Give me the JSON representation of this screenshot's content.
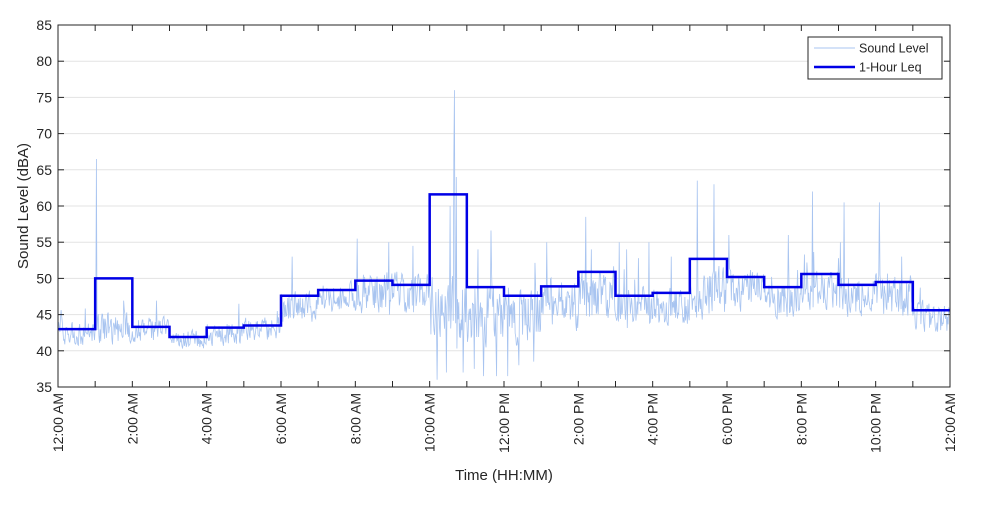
{
  "chart_data": {
    "type": "line",
    "xlabel": "Time (HH:MM)",
    "ylabel": "Sound Level (dBA)",
    "xlim": [
      0,
      24
    ],
    "ylim": [
      35,
      85
    ],
    "yticks": [
      35,
      40,
      45,
      50,
      55,
      60,
      65,
      70,
      75,
      80,
      85
    ],
    "x_tick_hours": [
      0,
      2,
      4,
      6,
      8,
      10,
      12,
      14,
      16,
      18,
      20,
      22,
      24
    ],
    "x_tick_labels": [
      "12:00 AM",
      "2:00 AM",
      "4:00 AM",
      "6:00 AM",
      "8:00 AM",
      "10:00 AM",
      "12:00 PM",
      "2:00 PM",
      "4:00 PM",
      "6:00 PM",
      "8:00 PM",
      "10:00 PM",
      "12:00 AM"
    ],
    "grid": true,
    "legend_position": "top-right",
    "colors": {
      "sound_level": "#a8c4f0",
      "leq": "#0000e6",
      "grid": "#e3e3e3",
      "axis": "#262626"
    },
    "series": [
      {
        "name": "Sound Level",
        "sampling": "approximately 1-minute samples, 00:00 to 24:00",
        "baseline_by_hour": [
          42.5,
          43,
          43,
          41.5,
          42.5,
          43,
          46,
          47.5,
          48,
          48,
          45.5,
          45,
          45,
          46.5,
          47.5,
          46,
          46,
          48,
          48.5,
          47,
          48,
          47.5,
          47.5,
          44.5
        ],
        "noise_by_hour": [
          1.5,
          2,
          1.5,
          1.2,
          1.5,
          1.5,
          2,
          2,
          2.5,
          2.5,
          4,
          4,
          3.5,
          3,
          3,
          2.5,
          2.5,
          3,
          2.5,
          2.5,
          2.5,
          2.5,
          2.5,
          2
        ],
        "peaks": [
          {
            "hour": 1.03,
            "db": 66.5
          },
          {
            "hour": 4.87,
            "db": 46.5
          },
          {
            "hour": 5.9,
            "db": 45.5
          },
          {
            "hour": 6.3,
            "db": 53
          },
          {
            "hour": 8.05,
            "db": 55.5
          },
          {
            "hour": 8.9,
            "db": 55
          },
          {
            "hour": 9.55,
            "db": 54.5
          },
          {
            "hour": 10.2,
            "db": 58
          },
          {
            "hour": 10.55,
            "db": 60
          },
          {
            "hour": 10.65,
            "db": 67
          },
          {
            "hour": 10.67,
            "db": 76
          },
          {
            "hour": 10.72,
            "db": 64
          },
          {
            "hour": 11.3,
            "db": 54
          },
          {
            "hour": 13.15,
            "db": 55
          },
          {
            "hour": 14.2,
            "db": 58.5
          },
          {
            "hour": 14.35,
            "db": 54
          },
          {
            "hour": 15.1,
            "db": 55
          },
          {
            "hour": 15.3,
            "db": 54
          },
          {
            "hour": 15.9,
            "db": 55
          },
          {
            "hour": 16.5,
            "db": 53
          },
          {
            "hour": 17.2,
            "db": 63.5
          },
          {
            "hour": 17.65,
            "db": 63
          },
          {
            "hour": 18.05,
            "db": 56
          },
          {
            "hour": 19.65,
            "db": 56
          },
          {
            "hour": 20.3,
            "db": 62
          },
          {
            "hour": 21.05,
            "db": 55
          },
          {
            "hour": 21.15,
            "db": 60.5
          },
          {
            "hour": 22.1,
            "db": 60.5
          },
          {
            "hour": 22.7,
            "db": 53
          }
        ],
        "dips": [
          {
            "hour": 10.2,
            "db": 36
          },
          {
            "hour": 10.45,
            "db": 37
          },
          {
            "hour": 10.9,
            "db": 37
          },
          {
            "hour": 11.2,
            "db": 37.5
          },
          {
            "hour": 11.45,
            "db": 36.5
          },
          {
            "hour": 11.8,
            "db": 36.5
          },
          {
            "hour": 12.1,
            "db": 36.5
          },
          {
            "hour": 12.4,
            "db": 38
          },
          {
            "hour": 12.8,
            "db": 38.5
          }
        ]
      },
      {
        "name": "1-Hour Leq",
        "step": "post",
        "x": [
          0,
          1,
          2,
          3,
          4,
          5,
          6,
          7,
          8,
          9,
          10,
          11,
          12,
          13,
          14,
          15,
          16,
          17,
          18,
          19,
          20,
          21,
          22,
          23
        ],
        "values": [
          43.0,
          50.0,
          43.3,
          41.9,
          43.2,
          43.5,
          47.6,
          48.4,
          49.7,
          49.1,
          61.6,
          48.8,
          47.6,
          48.9,
          50.9,
          47.6,
          48.0,
          52.7,
          50.2,
          48.8,
          50.6,
          49.1,
          49.5,
          45.6
        ]
      }
    ]
  }
}
